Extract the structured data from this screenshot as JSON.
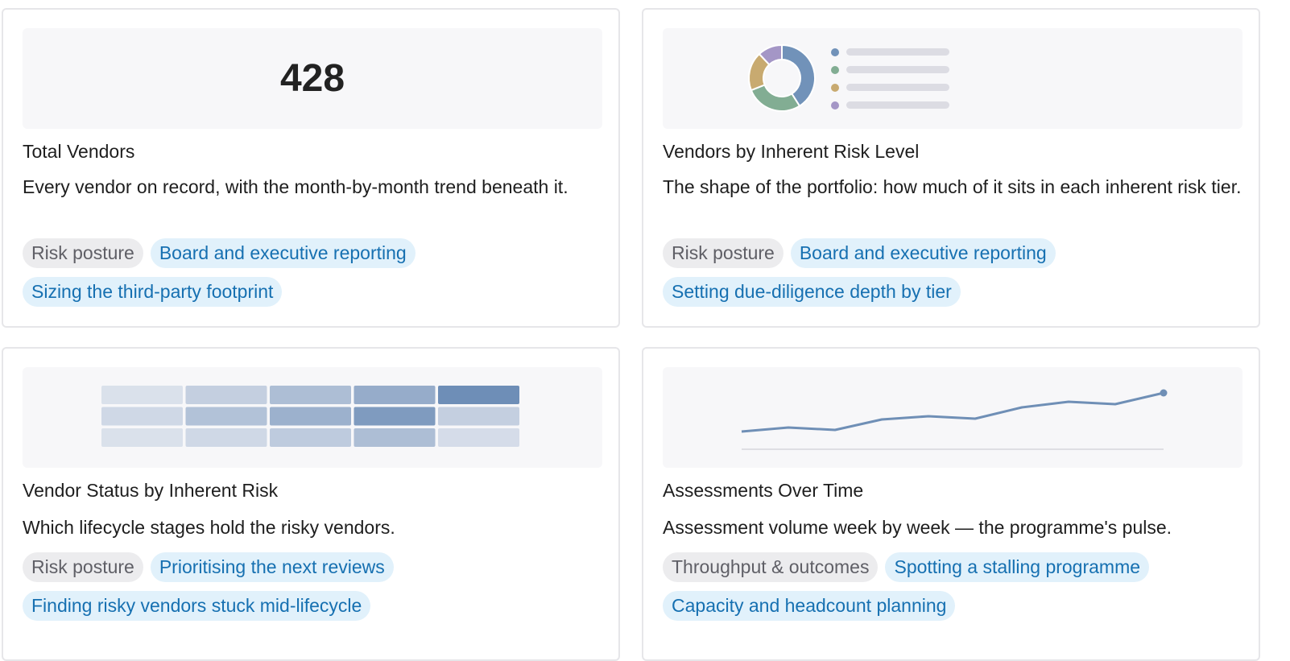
{
  "cards": [
    {
      "kpi_value": "428",
      "title": "Total Vendors",
      "description": "Every vendor on record, with the month-by-month trend beneath it.",
      "tags": [
        {
          "label": "Risk posture",
          "kind": "category"
        },
        {
          "label": "Board and executive reporting",
          "kind": "use-case"
        },
        {
          "label": "Sizing the third-party footprint",
          "kind": "use-case"
        }
      ]
    },
    {
      "title": "Vendors by Inherent Risk Level",
      "description": "The shape of the portfolio: how much of it sits in each inherent risk tier.",
      "preview": "donut",
      "tags": [
        {
          "label": "Risk posture",
          "kind": "category"
        },
        {
          "label": "Board and executive reporting",
          "kind": "use-case"
        },
        {
          "label": "Setting due-diligence depth by tier",
          "kind": "use-case"
        }
      ]
    },
    {
      "title": "Vendor Status by Inherent Risk",
      "description": "Which lifecycle stages hold the risky vendors.",
      "preview": "heatmap",
      "tags": [
        {
          "label": "Risk posture",
          "kind": "category"
        },
        {
          "label": "Prioritising the next reviews",
          "kind": "use-case"
        },
        {
          "label": "Finding risky vendors stuck mid-lifecycle",
          "kind": "use-case"
        }
      ]
    },
    {
      "title": "Assessments Over Time",
      "description": "Assessment volume week by week — the programme's pulse.",
      "preview": "line",
      "tags": [
        {
          "label": "Throughput & outcomes",
          "kind": "category"
        },
        {
          "label": "Spotting a stalling programme",
          "kind": "use-case"
        },
        {
          "label": "Capacity and headcount planning",
          "kind": "use-case"
        }
      ]
    }
  ],
  "colors": {
    "tag_category_bg": "#ececee",
    "tag_category_text": "#5f5f66",
    "tag_usecase_bg": "#e1f1fb",
    "tag_usecase_text": "#1670b1",
    "preview_bg": "#f7f7f9",
    "donut_slices": [
      "#7192b9",
      "#82ad93",
      "#c8aa70",
      "#a496c6"
    ],
    "line_stroke": "#6f8fb6"
  }
}
